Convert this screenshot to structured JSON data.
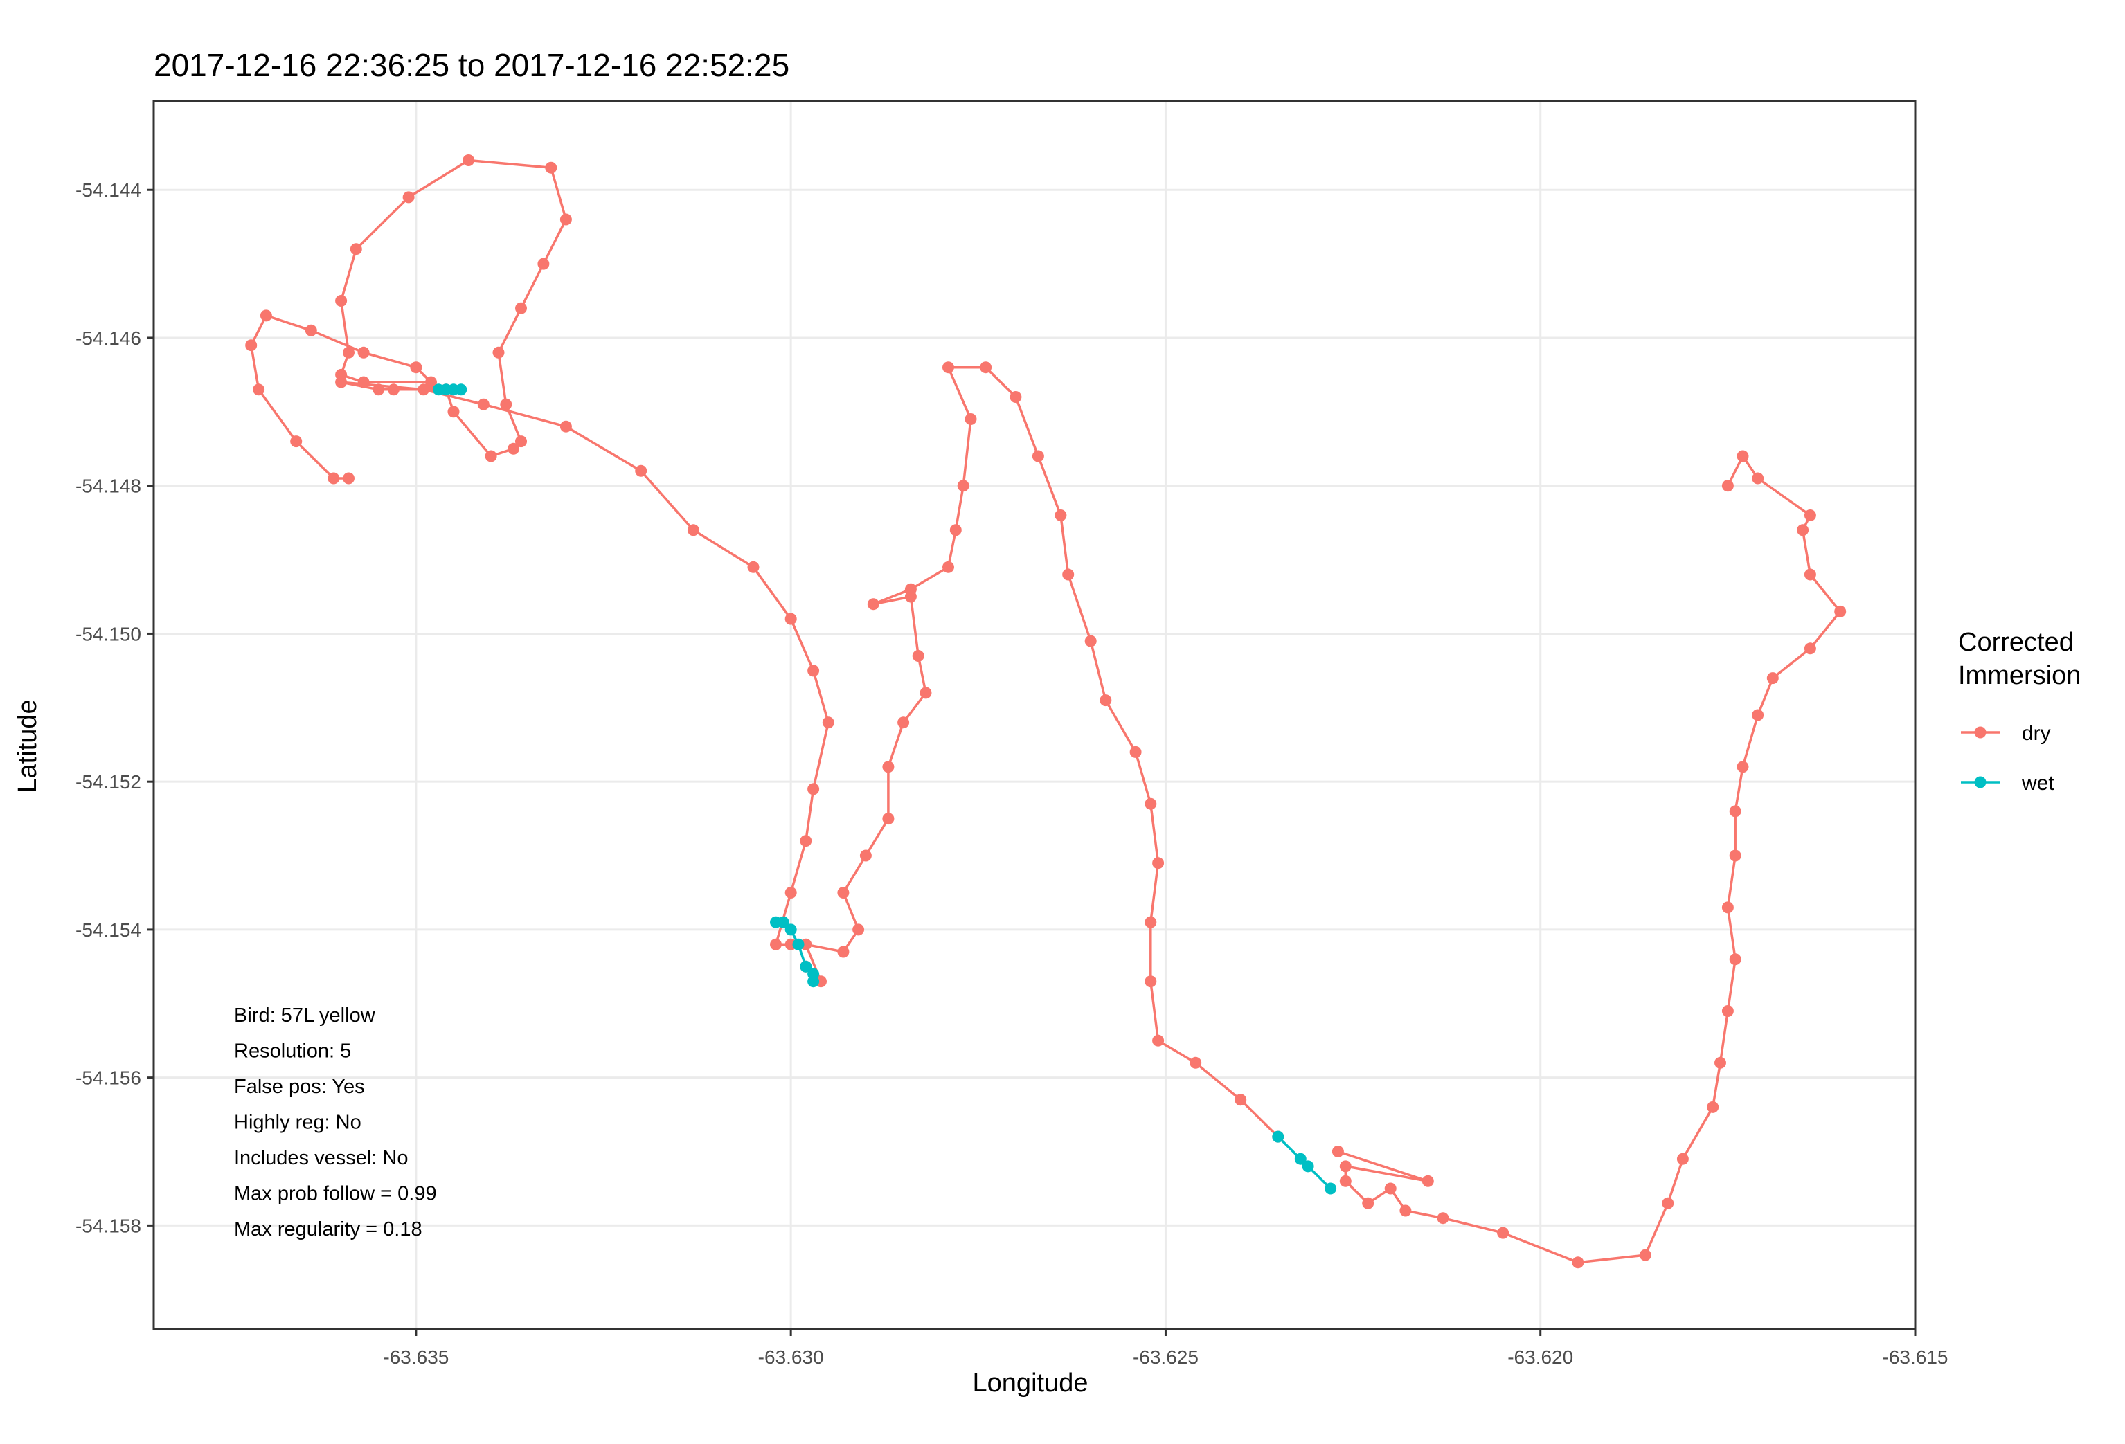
{
  "chart_data": {
    "type": "line",
    "title": "2017-12-16 22:36:25 to 2017-12-16 22:52:25",
    "xlabel": "Longitude",
    "ylabel": "Latitude",
    "xlim": [
      -63.6385,
      -63.615
    ],
    "ylim": [
      -54.1594,
      -54.1428
    ],
    "x_ticks": [
      -63.635,
      -63.63,
      -63.625,
      -63.62,
      -63.615
    ],
    "x_tick_labels": [
      "-63.635",
      "-63.630",
      "-63.625",
      "-63.620",
      "-63.615"
    ],
    "y_ticks": [
      -54.144,
      -54.146,
      -54.148,
      -54.15,
      -54.152,
      -54.154,
      -54.156,
      -54.158
    ],
    "y_tick_labels": [
      "-54.144",
      "-54.146",
      "-54.148",
      "-54.150",
      "-54.152",
      "-54.154",
      "-54.156",
      "-54.158"
    ],
    "grid": true,
    "legend": {
      "title": "Corrected\nImmersion",
      "position": "right",
      "entries": [
        {
          "label": "dry",
          "color": "#F8766D"
        },
        {
          "label": "wet",
          "color": "#00BFC4"
        }
      ]
    },
    "annotations": [
      "Bird: 57L yellow",
      "Resolution: 5",
      "False pos: Yes",
      "Highly reg: No",
      "Includes vessel: No",
      "Max prob follow = 0.99",
      "Max regularity = 0.18"
    ],
    "series": [
      {
        "name": "dry",
        "color": "#F8766D",
        "segments": [
          [
            [
              -63.6359,
              -54.1479
            ],
            [
              -63.6361,
              -54.1479
            ],
            [
              -63.6366,
              -54.1474
            ],
            [
              -63.6371,
              -54.1467
            ],
            [
              -63.6372,
              -54.1461
            ],
            [
              -63.637,
              -54.1457
            ],
            [
              -63.6364,
              -54.1459
            ],
            [
              -63.6357,
              -54.1462
            ],
            [
              -63.635,
              -54.1464
            ],
            [
              -63.6348,
              -54.1466
            ],
            [
              -63.6357,
              -54.1466
            ],
            [
              -63.636,
              -54.1465
            ],
            [
              -63.6359,
              -54.1462
            ],
            [
              -63.636,
              -54.1455
            ],
            [
              -63.6358,
              -54.1448
            ],
            [
              -63.6351,
              -54.1441
            ],
            [
              -63.6343,
              -54.1436
            ],
            [
              -63.6332,
              -54.1437
            ],
            [
              -63.633,
              -54.1444
            ],
            [
              -63.6333,
              -54.145
            ],
            [
              -63.6336,
              -54.1456
            ],
            [
              -63.6339,
              -54.1462
            ],
            [
              -63.6338,
              -54.1469
            ],
            [
              -63.6336,
              -54.1474
            ],
            [
              -63.6337,
              -54.1475
            ],
            [
              -63.634,
              -54.1476
            ],
            [
              -63.6345,
              -54.147
            ],
            [
              -63.6346,
              -54.1467
            ],
            [
              -63.6353,
              -54.1467
            ],
            [
              -63.6355,
              -54.1467
            ],
            [
              -63.636,
              -54.1466
            ],
            [
              -63.6349,
              -54.1467
            ],
            [
              -63.6341,
              -54.1469
            ],
            [
              -63.633,
              -54.1472
            ],
            [
              -63.632,
              -54.1478
            ],
            [
              -63.6313,
              -54.1486
            ],
            [
              -63.6305,
              -54.1491
            ],
            [
              -63.63,
              -54.1498
            ],
            [
              -63.6297,
              -54.1505
            ],
            [
              -63.6295,
              -54.1512
            ],
            [
              -63.6297,
              -54.1521
            ],
            [
              -63.6298,
              -54.1528
            ],
            [
              -63.63,
              -54.1535
            ],
            [
              -63.6302,
              -54.1542
            ],
            [
              -63.63,
              -54.1542
            ]
          ],
          [
            [
              -63.6298,
              -54.1545
            ],
            [
              -63.6296,
              -54.1547
            ],
            [
              -63.6298,
              -54.1542
            ],
            [
              -63.6293,
              -54.1543
            ],
            [
              -63.6291,
              -54.154
            ],
            [
              -63.6293,
              -54.1535
            ],
            [
              -63.629,
              -54.153
            ],
            [
              -63.6287,
              -54.1525
            ],
            [
              -63.6287,
              -54.1518
            ],
            [
              -63.6285,
              -54.1512
            ],
            [
              -63.6282,
              -54.1508
            ],
            [
              -63.6283,
              -54.1503
            ],
            [
              -63.6284,
              -54.1495
            ],
            [
              -63.6289,
              -54.1496
            ],
            [
              -63.6284,
              -54.1494
            ],
            [
              -63.6279,
              -54.1491
            ],
            [
              -63.6278,
              -54.1486
            ],
            [
              -63.6277,
              -54.148
            ],
            [
              -63.6276,
              -54.1471
            ],
            [
              -63.6279,
              -54.1464
            ],
            [
              -63.6274,
              -54.1464
            ],
            [
              -63.627,
              -54.1468
            ],
            [
              -63.6267,
              -54.1476
            ],
            [
              -63.6264,
              -54.1484
            ],
            [
              -63.6263,
              -54.1492
            ],
            [
              -63.626,
              -54.1501
            ],
            [
              -63.6258,
              -54.1509
            ],
            [
              -63.6254,
              -54.1516
            ],
            [
              -63.6252,
              -54.1523
            ],
            [
              -63.6251,
              -54.1531
            ],
            [
              -63.6252,
              -54.1539
            ],
            [
              -63.6252,
              -54.1547
            ],
            [
              -63.6251,
              -54.1555
            ],
            [
              -63.6246,
              -54.1558
            ],
            [
              -63.624,
              -54.1563
            ],
            [
              -63.6235,
              -54.1568
            ]
          ],
          [
            [
              -63.6227,
              -54.157
            ],
            [
              -63.6215,
              -54.1574
            ],
            [
              -63.6226,
              -54.1572
            ],
            [
              -63.6226,
              -54.1574
            ],
            [
              -63.6223,
              -54.1577
            ],
            [
              -63.622,
              -54.1575
            ],
            [
              -63.6218,
              -54.1578
            ],
            [
              -63.6213,
              -54.1579
            ],
            [
              -63.6205,
              -54.1581
            ],
            [
              -63.6195,
              -54.1585
            ],
            [
              -63.6186,
              -54.1584
            ],
            [
              -63.6183,
              -54.1577
            ],
            [
              -63.6181,
              -54.1571
            ],
            [
              -63.6177,
              -54.1564
            ],
            [
              -63.6176,
              -54.1558
            ],
            [
              -63.6175,
              -54.1551
            ],
            [
              -63.6174,
              -54.1544
            ],
            [
              -63.6175,
              -54.1537
            ],
            [
              -63.6174,
              -54.153
            ],
            [
              -63.6174,
              -54.1524
            ],
            [
              -63.6173,
              -54.1518
            ],
            [
              -63.6171,
              -54.1511
            ],
            [
              -63.6169,
              -54.1506
            ],
            [
              -63.6164,
              -54.1502
            ],
            [
              -63.616,
              -54.1497
            ],
            [
              -63.6164,
              -54.1492
            ],
            [
              -63.6165,
              -54.1486
            ],
            [
              -63.6164,
              -54.1484
            ],
            [
              -63.6171,
              -54.1479
            ],
            [
              -63.6173,
              -54.1476
            ],
            [
              -63.6175,
              -54.148
            ]
          ]
        ]
      },
      {
        "name": "wet",
        "color": "#00BFC4",
        "segments": [
          [
            [
              -63.6347,
              -54.1467
            ],
            [
              -63.6346,
              -54.1467
            ],
            [
              -63.6345,
              -54.1467
            ],
            [
              -63.6344,
              -54.1467
            ]
          ],
          [
            [
              -63.6302,
              -54.1539
            ],
            [
              -63.6301,
              -54.1539
            ],
            [
              -63.63,
              -54.154
            ],
            [
              -63.6299,
              -54.1542
            ],
            [
              -63.6298,
              -54.1545
            ],
            [
              -63.6297,
              -54.1546
            ],
            [
              -63.6297,
              -54.1547
            ]
          ],
          [
            [
              -63.6235,
              -54.1568
            ],
            [
              -63.6232,
              -54.1571
            ],
            [
              -63.6231,
              -54.1572
            ],
            [
              -63.6228,
              -54.1575
            ]
          ]
        ]
      }
    ]
  }
}
